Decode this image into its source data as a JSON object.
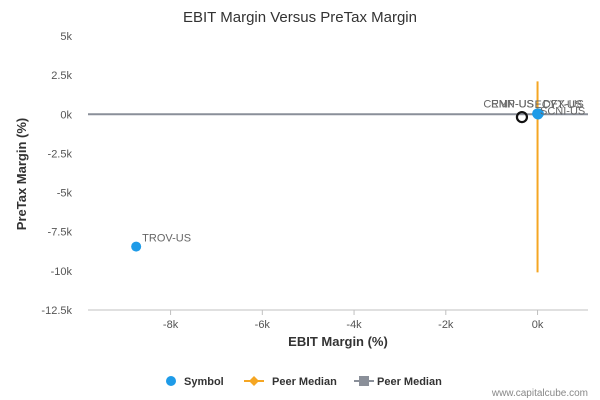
{
  "chart_data": {
    "type": "scatter",
    "title": "EBIT Margin Versus PreTax Margin",
    "xlabel": "EBIT Margin (%)",
    "ylabel": "PreTax Margin (%)",
    "xlim": [
      -9800,
      1100
    ],
    "ylim": [
      -12500,
      5000
    ],
    "x_ticks": [
      -8000,
      -6000,
      -4000,
      -2000,
      0
    ],
    "x_tick_labels": [
      "-8k",
      "-6k",
      "-4k",
      "-2k",
      "0k"
    ],
    "y_ticks": [
      5000,
      2500,
      0,
      -2500,
      -5000,
      -7500,
      -10000,
      -12500
    ],
    "y_tick_labels": [
      "5k",
      "2.5k",
      "0k",
      "-2.5k",
      "-5k",
      "-7.5k",
      "-10k",
      "-12.5k"
    ],
    "grid": false,
    "series": [
      {
        "name": "Symbol",
        "color": "#1e9be8",
        "points": [
          {
            "label": "TROV-US",
            "x": -8750,
            "y": -8450
          },
          {
            "label": "CEMP-US",
            "x": -10,
            "y": 40
          },
          {
            "label": "RNN-US",
            "x": 5,
            "y": 60
          },
          {
            "label": "ECYT-US",
            "x": 20,
            "y": 30
          },
          {
            "label": "DFX-US",
            "x": 30,
            "y": 50
          },
          {
            "label": "SCNI-US",
            "x": 10,
            "y": -20
          }
        ]
      }
    ],
    "highlight": {
      "x": -340,
      "y": -180
    },
    "peer_median_ebit": {
      "name": "Peer Median",
      "color": "#f5a623",
      "value": 0,
      "y_range": [
        -10100,
        2100
      ]
    },
    "peer_median_pretax": {
      "name": "Peer Median",
      "color": "#8a8f99",
      "value": 0
    },
    "legend_position": "bottom"
  },
  "credit": "www.capitalcube.com"
}
